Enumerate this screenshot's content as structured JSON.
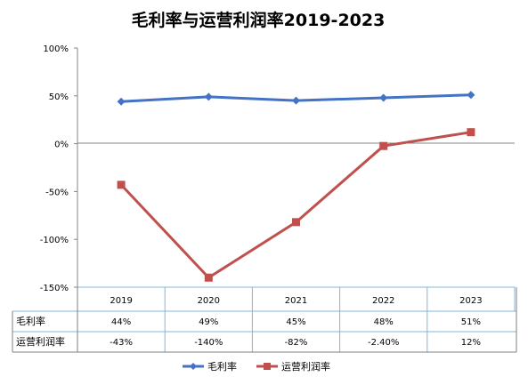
{
  "chart_data": {
    "type": "line",
    "title": "毛利率与运营利润率2019-2023",
    "categories": [
      "2019",
      "2020",
      "2021",
      "2022",
      "2023"
    ],
    "series": [
      {
        "name": "毛利率",
        "values": [
          44,
          49,
          45,
          48,
          51
        ],
        "labels": [
          "44%",
          "49%",
          "45%",
          "48%",
          "51%"
        ],
        "color": "#4472C4",
        "marker": "diamond"
      },
      {
        "name": "运营利润率",
        "values": [
          -43,
          -140,
          -82,
          -2.4,
          12
        ],
        "labels": [
          "-43%",
          "-140%",
          "-82%",
          "-2.40%",
          "12%"
        ],
        "color": "#C0504D",
        "marker": "square"
      }
    ],
    "y_ticks": [
      "100%",
      "50%",
      "0%",
      "-50%",
      "-100%",
      "-150%"
    ],
    "ylim": [
      -150,
      100
    ],
    "y_unit": "%",
    "legend_position": "bottom",
    "data_table": true,
    "grid": false
  }
}
